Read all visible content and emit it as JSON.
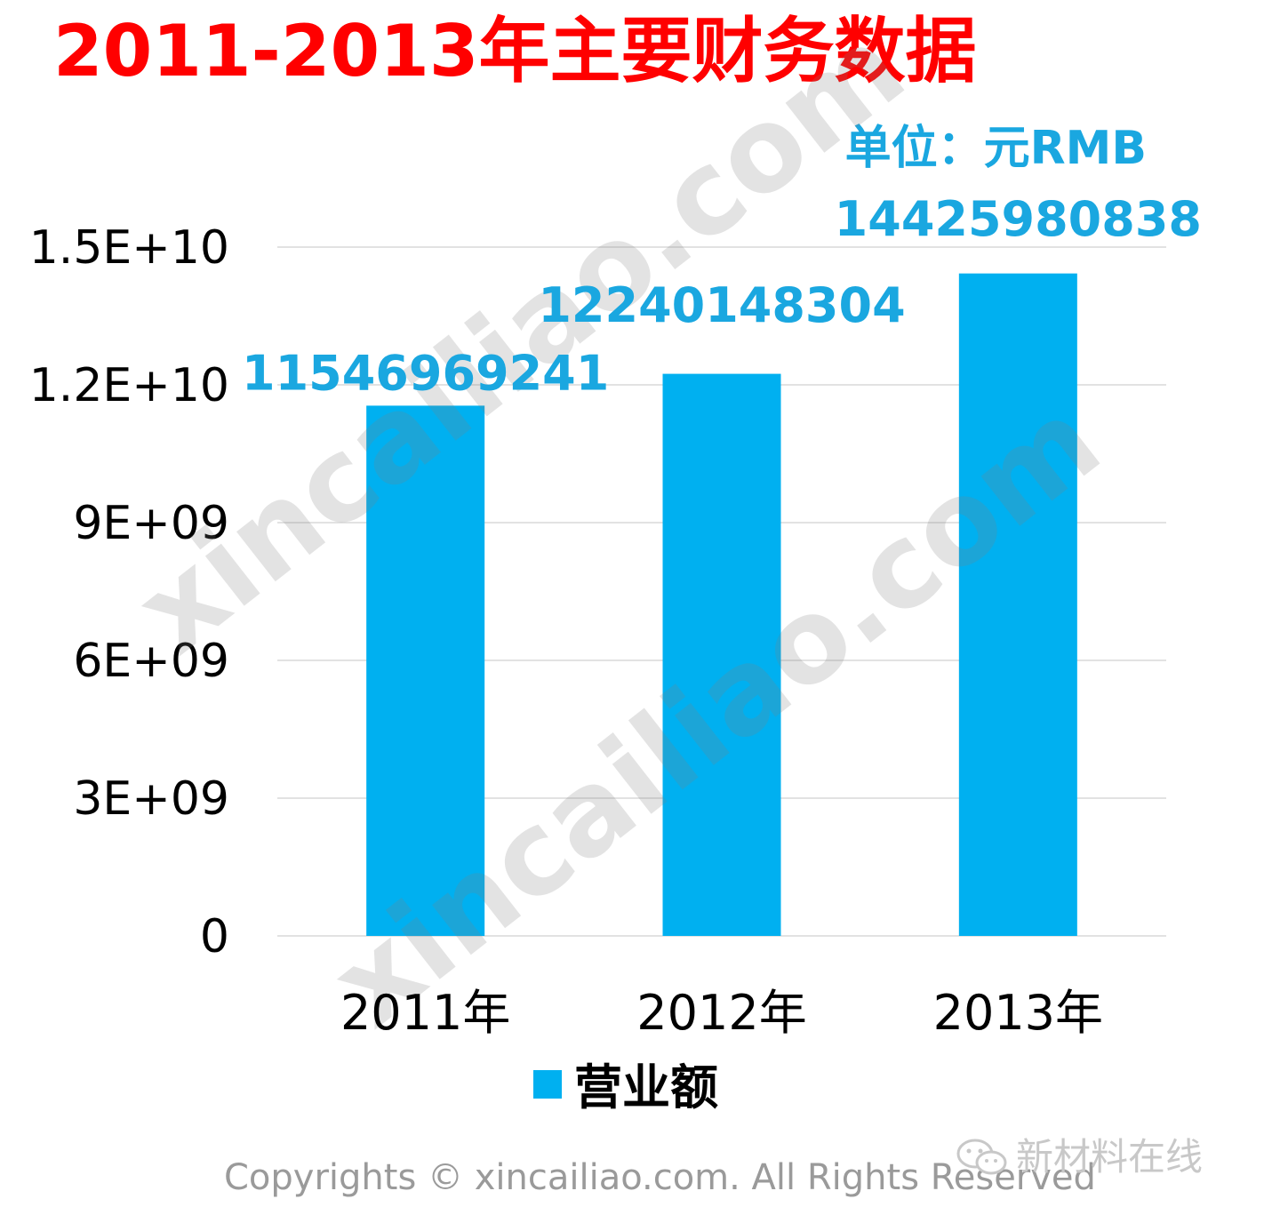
{
  "chart_data": {
    "type": "bar",
    "title": "2011-2013年主要财务数据",
    "unit_label": "单位：元RMB",
    "categories": [
      "2011年",
      "2012年",
      "2013年"
    ],
    "series": [
      {
        "name": "营业额",
        "values": [
          11546969241,
          12240148304,
          14425980838
        ],
        "color": "#00b0f0"
      }
    ],
    "data_labels": [
      "11546969241",
      "12240148304",
      "14425980838"
    ],
    "y_ticks": [
      "0",
      "3E+09",
      "6E+09",
      "9E+09",
      "1.2E+10",
      "1.5E+10"
    ],
    "y_tick_values": [
      0,
      3000000000,
      6000000000,
      9000000000,
      12000000000,
      15000000000
    ],
    "ylim": [
      0,
      15000000000
    ],
    "xlabel": "",
    "ylabel": "",
    "grid": true,
    "legend_position": "bottom",
    "label_color": "#1aa7e0"
  },
  "watermark": {
    "text": "xincailiao.com"
  },
  "footer": {
    "copyright": "Copyrights © xincailiao.com. All Rights Reserved",
    "brand": "新材料在线",
    "brand_icon": "wechat-icon"
  }
}
